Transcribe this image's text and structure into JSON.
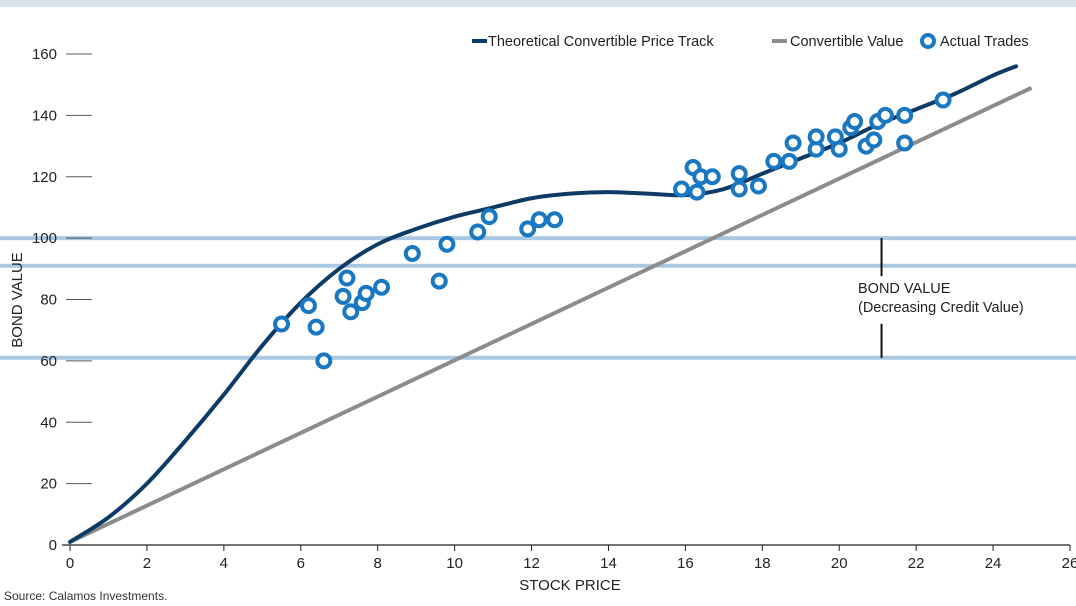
{
  "chart_data": {
    "type": "line",
    "title": "",
    "xlabel": "STOCK PRICE",
    "ylabel": "BOND VALUE",
    "xlim": [
      0,
      26
    ],
    "ylim": [
      0,
      160
    ],
    "x_ticks": [
      0,
      2,
      4,
      6,
      8,
      10,
      12,
      14,
      16,
      18,
      20,
      22,
      24,
      26
    ],
    "y_ticks": [
      0,
      20,
      40,
      60,
      80,
      100,
      120,
      140,
      160
    ],
    "grid": false,
    "legend_position": "top-right",
    "colors": {
      "theoretical": "#0d3b66",
      "convertible": "#8c8c8c",
      "trades": "#1a78c2",
      "bond_lines": "#a9c8e2"
    },
    "series": [
      {
        "name": "Theoretical Convertible Price Track",
        "type": "line",
        "x": [
          0,
          1,
          2,
          3,
          4,
          5,
          6,
          7,
          8,
          9,
          10,
          11,
          12,
          13,
          14,
          15,
          16,
          17,
          18,
          19,
          20,
          21,
          22,
          23,
          24,
          24.6
        ],
        "y": [
          1,
          9,
          20,
          34,
          49,
          65,
          79,
          90,
          98,
          103,
          107,
          110,
          113,
          114.5,
          115,
          114.5,
          114,
          116,
          121,
          126,
          131,
          137,
          142,
          147,
          153,
          156
        ]
      },
      {
        "name": "Convertible Value",
        "type": "line",
        "x": [
          0,
          25
        ],
        "y": [
          1,
          149
        ]
      },
      {
        "name": "Actual Trades",
        "type": "scatter",
        "x": [
          5.5,
          6.2,
          6.4,
          6.6,
          7.1,
          7.2,
          7.3,
          7.6,
          7.7,
          8.1,
          8.9,
          9.6,
          9.8,
          10.6,
          10.9,
          11.9,
          12.2,
          12.6,
          15.9,
          16.2,
          16.3,
          16.4,
          16.7,
          17.4,
          17.4,
          17.9,
          18.3,
          18.7,
          18.8,
          19.4,
          19.4,
          19.9,
          20.0,
          20.3,
          20.4,
          20.7,
          20.9,
          21.0,
          21.2,
          21.7,
          21.7,
          22.7
        ],
        "y": [
          72,
          78,
          71,
          60,
          81,
          87,
          76,
          79,
          82,
          84,
          95,
          86,
          98,
          102,
          107,
          103,
          106,
          106,
          116,
          123,
          115,
          120,
          120,
          121,
          116,
          117,
          125,
          125,
          131,
          129,
          133,
          133,
          129,
          136,
          138,
          130,
          132,
          138,
          140,
          131,
          140,
          145
        ]
      }
    ],
    "reference_lines": [
      {
        "axis": "y",
        "value": 100
      },
      {
        "axis": "y",
        "value": 91
      },
      {
        "axis": "y",
        "value": 61
      }
    ],
    "annotation": {
      "line1": "BOND VALUE",
      "line2": "(Decreasing Credit Value)",
      "bracket_x": 21.1,
      "bracket_from": 61,
      "bracket_to": 100
    }
  },
  "source_text": "Source: Calamos Investments."
}
